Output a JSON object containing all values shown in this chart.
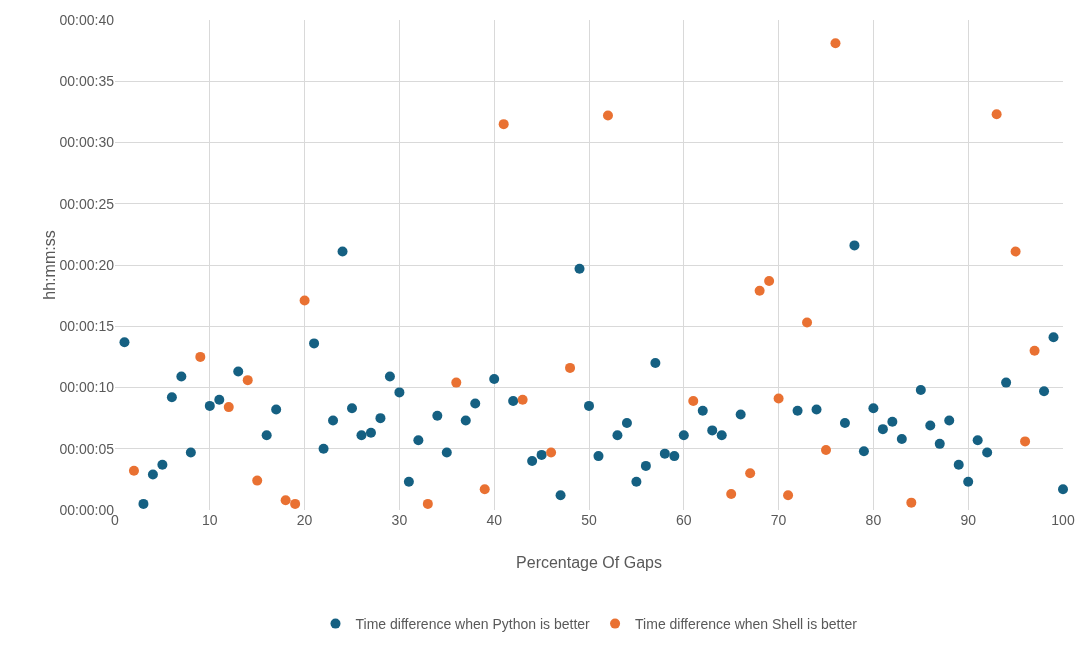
{
  "chart_data": {
    "type": "scatter",
    "xlabel": "Percentage Of Gaps",
    "ylabel": "hh:mm:ss",
    "xlim": [
      0,
      100
    ],
    "xticks": [
      0,
      10,
      20,
      30,
      40,
      50,
      60,
      70,
      80,
      90,
      100
    ],
    "ylim": [
      0,
      40
    ],
    "yticks": [
      {
        "value": 0,
        "label": "00:00:00"
      },
      {
        "value": 5,
        "label": "00:00:05"
      },
      {
        "value": 10,
        "label": "00:00:10"
      },
      {
        "value": 15,
        "label": "00:00:15"
      },
      {
        "value": 20,
        "label": "00:00:20"
      },
      {
        "value": 25,
        "label": "00:00:25"
      },
      {
        "value": 30,
        "label": "00:00:30"
      },
      {
        "value": 35,
        "label": "00:00:35"
      },
      {
        "value": 40,
        "label": "00:00:40"
      }
    ],
    "grid": true,
    "legend": "bottom",
    "marker": "circle",
    "series": [
      {
        "name": "Time difference when Python is better",
        "color": "#156082",
        "x": [
          1,
          3,
          4,
          5,
          6,
          7,
          8,
          10,
          11,
          13,
          16,
          17,
          21,
          22,
          23,
          24,
          25,
          26,
          27,
          28,
          29,
          30,
          31,
          32,
          34,
          35,
          37,
          38,
          40,
          42,
          44,
          45,
          47,
          49,
          50,
          51,
          53,
          54,
          55,
          56,
          57,
          58,
          59,
          60,
          62,
          63,
          64,
          66,
          72,
          74,
          77,
          78,
          79,
          80,
          81,
          82,
          83,
          85,
          86,
          87,
          88,
          89,
          90,
          91,
          92,
          94,
          98,
          99,
          100
        ],
        "values": [
          13.7,
          0.5,
          2.9,
          3.7,
          9.2,
          10.9,
          4.7,
          8.5,
          9.0,
          11.3,
          6.1,
          8.2,
          13.6,
          5.0,
          7.3,
          21.1,
          8.3,
          6.1,
          6.3,
          7.5,
          10.9,
          9.6,
          2.3,
          5.7,
          7.7,
          4.7,
          7.3,
          8.7,
          10.7,
          8.9,
          4.0,
          4.5,
          1.2,
          19.7,
          8.5,
          4.4,
          6.1,
          7.1,
          2.3,
          3.6,
          12.0,
          4.6,
          4.4,
          6.1,
          8.1,
          6.5,
          6.1,
          7.8,
          8.1,
          8.2,
          7.1,
          21.6,
          4.8,
          8.3,
          6.6,
          7.2,
          5.8,
          9.8,
          6.9,
          5.4,
          7.3,
          3.7,
          2.3,
          5.7,
          4.7,
          10.4,
          9.7,
          14.1,
          1.7
        ]
      },
      {
        "name": "Time difference when Shell is better",
        "color": "#e97132",
        "x": [
          2,
          9,
          12,
          14,
          15,
          18,
          19,
          20,
          33,
          36,
          39,
          41,
          43,
          46,
          48,
          52,
          61,
          65,
          67,
          68,
          69,
          70,
          71,
          73,
          75,
          76,
          84,
          93,
          95,
          96,
          97
        ],
        "values": [
          3.2,
          12.5,
          8.4,
          10.6,
          2.4,
          0.8,
          0.5,
          17.1,
          0.5,
          10.4,
          1.7,
          31.5,
          9.0,
          4.7,
          11.6,
          32.2,
          8.9,
          1.3,
          3.0,
          17.9,
          18.7,
          9.1,
          1.2,
          15.3,
          4.9,
          38.1,
          0.6,
          32.3,
          21.1,
          5.6,
          13.0
        ]
      }
    ]
  }
}
